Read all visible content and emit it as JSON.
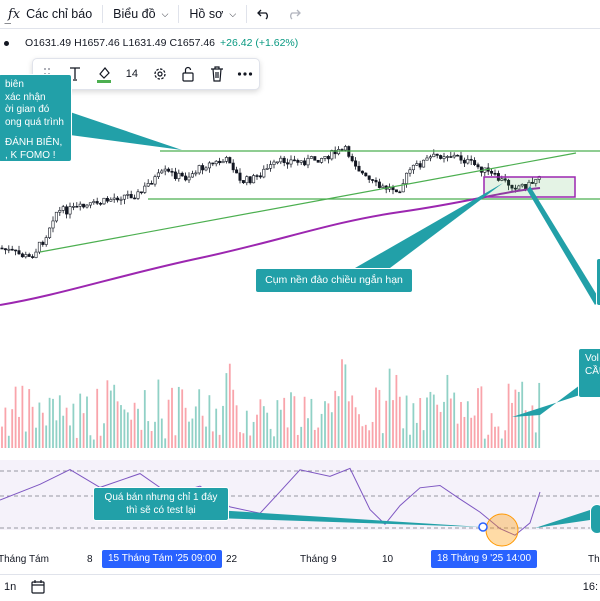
{
  "toolbar": {
    "indicators_label": "Các chỉ báo",
    "chart_label": "Biểu đồ",
    "profile_label": "Hồ sơ",
    "undo_icon": "undo-icon",
    "redo_icon": "redo-icon"
  },
  "ohlc": {
    "open": "O1631.49",
    "high": "H1657.46",
    "low": "L1631.49",
    "close": "C1657.46",
    "change": "+26.42 (+1.62%)"
  },
  "drawing_toolbar": {
    "font_size": "14",
    "icons": [
      "drag-handle-icon",
      "text-icon",
      "fill-color-icon",
      "settings-icon",
      "unlock-icon",
      "trash-icon",
      "more-icon"
    ]
  },
  "callouts": {
    "left_lines": [
      "biên",
      "xác nhận",
      "ời gian đó",
      "ong quá trình",
      "",
      "ĐÁNH BIÊN,",
      ", K FOMO !"
    ],
    "reversal": "Cụm nền đảo chiều ngắn hạn",
    "vol_lines": [
      "Vol",
      "CẦU"
    ],
    "oversold_lines": [
      "Quá bán nhưng chỉ 1 đáy",
      "thì sẽ có test lại"
    ]
  },
  "time_axis": {
    "labels": [
      "Tháng Tám",
      "8",
      "22",
      "Tháng 9",
      "10",
      "Thá"
    ],
    "badge_left": "15 Tháng Tám '25   09:00",
    "badge_right": "18 Tháng 9 '25   14:00"
  },
  "bottom": {
    "interval": "1n",
    "time": "16:"
  },
  "colors": {
    "bull": "#089981",
    "bear": "#f23645",
    "ma": "#9c27b0",
    "trend": "#4caf50",
    "callout": "#22a0a8",
    "rsi": "#7e57c2",
    "badge": "#2962ff"
  }
}
